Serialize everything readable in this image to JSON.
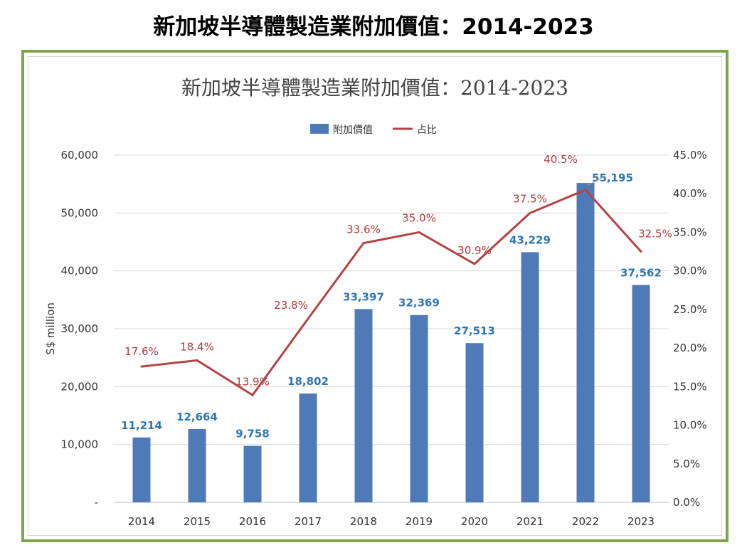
{
  "page_title": "新加坡半導體製造業附加價值：2014-2023",
  "colors": {
    "bar": "#4f7ab8",
    "line": "#b34444",
    "frame": "#7ea64f",
    "bar_label": "#2e75b6",
    "line_label": "#b03a3a"
  },
  "chart_data": {
    "type": "bar",
    "title": "新加坡半導體製造業附加價值：2014-2023",
    "ylabel": "S$ million",
    "y2label": "",
    "categories": [
      "2014",
      "2015",
      "2016",
      "2017",
      "2018",
      "2019",
      "2020",
      "2021",
      "2022",
      "2023"
    ],
    "series": [
      {
        "name": "附加價值",
        "type": "bar",
        "axis": "left",
        "values": [
          11214,
          12664,
          9758,
          18802,
          33397,
          32369,
          27513,
          43229,
          55195,
          37562
        ],
        "labels": [
          "11,214",
          "12,664",
          "9,758",
          "18,802",
          "33,397",
          "32,369",
          "27,513",
          "43,229",
          "55,195",
          "37,562"
        ]
      },
      {
        "name": "占比",
        "type": "line",
        "axis": "right",
        "values": [
          17.6,
          18.4,
          13.9,
          23.8,
          33.6,
          35.0,
          30.9,
          37.5,
          40.5,
          32.5
        ],
        "labels": [
          "17.6%",
          "18.4%",
          "13.9%",
          "23.8%",
          "33.6%",
          "35.0%",
          "30.9%",
          "37.5%",
          "40.5%",
          "32.5%"
        ]
      }
    ],
    "ylim": [
      0,
      60000
    ],
    "y2lim": [
      0,
      45
    ],
    "yticks": [
      "-",
      "10,000",
      "20,000",
      "30,000",
      "40,000",
      "50,000",
      "60,000"
    ],
    "y2ticks": [
      "0.0%",
      "5.0%",
      "10.0%",
      "15.0%",
      "20.0%",
      "25.0%",
      "30.0%",
      "35.0%",
      "40.0%",
      "45.0%"
    ],
    "grid": true,
    "legend": "top-center"
  }
}
